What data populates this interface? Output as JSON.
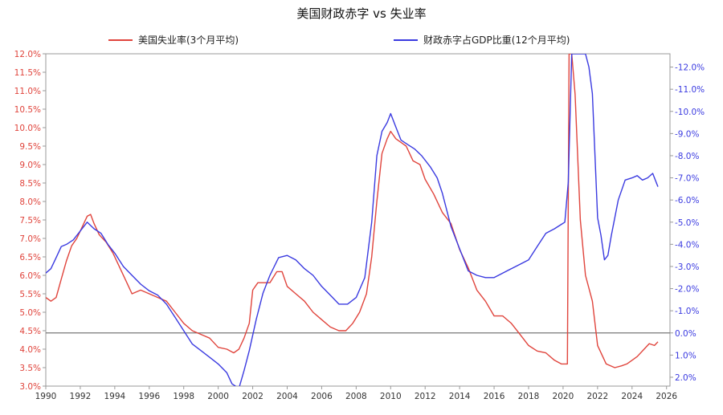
{
  "chart_data": {
    "type": "line",
    "title": "美国财政赤字 vs 失业率",
    "legend_position": "top",
    "grid": false,
    "x_ticks": [
      "1990",
      "1992",
      "1994",
      "1996",
      "1998",
      "2000",
      "2002",
      "2004",
      "2006",
      "2008",
      "2010",
      "2012",
      "2014",
      "2016",
      "2018",
      "2020",
      "2022",
      "2024",
      "2026"
    ],
    "xlim": [
      1990,
      2026.2
    ],
    "left_axis": {
      "ylim": [
        3.0,
        12.0
      ],
      "ticks": [
        "3.0%",
        "3.5%",
        "4.0%",
        "4.5%",
        "5.0%",
        "5.5%",
        "6.0%",
        "6.5%",
        "7.0%",
        "7.5%",
        "8.0%",
        "8.5%",
        "9.0%",
        "9.5%",
        "10.0%",
        "10.5%",
        "11.0%",
        "11.5%",
        "12.0%"
      ],
      "color": "#e0443c"
    },
    "right_axis": {
      "inverted": true,
      "ylim": [
        2.4,
        -12.6
      ],
      "ticks": [
        "2.0%",
        "1.0%",
        "0.0%",
        "-1.0%",
        "-2.0%",
        "-3.0%",
        "-4.0%",
        "-5.0%",
        "-6.0%",
        "-7.0%",
        "-8.0%",
        "-9.0%",
        "-10.0%",
        "-11.0%",
        "-12.0%"
      ],
      "color": "#3a3ae0"
    },
    "reference_line": {
      "axis": "right",
      "value": 0.0,
      "color": "#777777"
    },
    "series": [
      {
        "name": "美国失业率(3个月平均)",
        "axis": "left",
        "color": "#e0443c",
        "x": [
          1990.0,
          1990.3,
          1990.6,
          1990.9,
          1991.2,
          1991.5,
          1991.8,
          1992.1,
          1992.4,
          1992.6,
          1992.8,
          1993.1,
          1993.5,
          1993.9,
          1994.3,
          1994.7,
          1995.0,
          1995.5,
          1996.0,
          1996.5,
          1997.0,
          1997.5,
          1998.0,
          1998.5,
          1999.0,
          1999.5,
          2000.0,
          2000.5,
          2000.9,
          2001.2,
          2001.5,
          2001.8,
          2002.0,
          2002.3,
          2002.6,
          2003.0,
          2003.4,
          2003.7,
          2004.0,
          2004.5,
          2005.0,
          2005.5,
          2006.0,
          2006.5,
          2007.0,
          2007.4,
          2007.8,
          2008.2,
          2008.6,
          2008.9,
          2009.2,
          2009.5,
          2009.8,
          2010.0,
          2010.3,
          2010.6,
          2010.9,
          2011.3,
          2011.7,
          2012.0,
          2012.5,
          2013.0,
          2013.5,
          2014.0,
          2014.5,
          2015.0,
          2015.5,
          2016.0,
          2016.5,
          2017.0,
          2017.5,
          2018.0,
          2018.5,
          2019.0,
          2019.5,
          2019.9,
          2020.1,
          2020.25,
          2020.35,
          2020.5,
          2020.7,
          2021.0,
          2021.3,
          2021.7,
          2022.0,
          2022.5,
          2023.0,
          2023.4,
          2023.7,
          2024.0,
          2024.3,
          2024.7,
          2025.0,
          2025.3,
          2025.5
        ],
        "values": [
          5.4,
          5.3,
          5.4,
          5.9,
          6.4,
          6.8,
          7.0,
          7.3,
          7.6,
          7.65,
          7.4,
          7.1,
          6.9,
          6.6,
          6.2,
          5.8,
          5.5,
          5.6,
          5.5,
          5.4,
          5.3,
          5.0,
          4.7,
          4.5,
          4.4,
          4.3,
          4.05,
          4.0,
          3.9,
          4.0,
          4.3,
          4.7,
          5.6,
          5.8,
          5.8,
          5.8,
          6.1,
          6.1,
          5.7,
          5.5,
          5.3,
          5.0,
          4.8,
          4.6,
          4.5,
          4.5,
          4.7,
          5.0,
          5.5,
          6.5,
          8.0,
          9.3,
          9.7,
          9.9,
          9.7,
          9.6,
          9.5,
          9.1,
          9.0,
          8.6,
          8.2,
          7.7,
          7.4,
          6.7,
          6.2,
          5.6,
          5.3,
          4.9,
          4.9,
          4.7,
          4.4,
          4.1,
          3.95,
          3.9,
          3.7,
          3.6,
          3.6,
          3.6,
          12.0,
          12.0,
          10.9,
          7.5,
          6.0,
          5.3,
          4.1,
          3.6,
          3.5,
          3.55,
          3.6,
          3.7,
          3.8,
          4.0,
          4.15,
          4.1,
          4.2
        ]
      },
      {
        "name": "财政赤字占GDP比重(12个月平均)",
        "axis": "right",
        "color": "#3a3ae0",
        "x": [
          1990.0,
          1990.3,
          1990.6,
          1990.9,
          1991.2,
          1991.6,
          1992.0,
          1992.4,
          1992.8,
          1993.2,
          1993.6,
          1994.0,
          1994.5,
          1995.0,
          1995.5,
          1996.0,
          1996.5,
          1997.0,
          1997.5,
          1998.0,
          1998.5,
          1999.0,
          1999.5,
          2000.0,
          2000.5,
          2000.8,
          2001.2,
          2001.5,
          2001.8,
          2002.2,
          2002.6,
          2003.0,
          2003.5,
          2004.0,
          2004.5,
          2005.0,
          2005.5,
          2006.0,
          2006.5,
          2007.0,
          2007.5,
          2008.0,
          2008.5,
          2008.9,
          2009.2,
          2009.5,
          2009.8,
          2010.0,
          2010.3,
          2010.6,
          2011.0,
          2011.4,
          2011.8,
          2012.3,
          2012.7,
          2013.0,
          2013.5,
          2014.0,
          2014.5,
          2015.0,
          2015.5,
          2016.0,
          2016.5,
          2017.0,
          2017.5,
          2018.0,
          2018.5,
          2019.0,
          2019.5,
          2019.9,
          2020.1,
          2020.3,
          2020.5,
          2020.75,
          2021.0,
          2021.3,
          2021.5,
          2021.7,
          2022.0,
          2022.2,
          2022.4,
          2022.6,
          2022.8,
          2023.2,
          2023.6,
          2024.0,
          2024.3,
          2024.6,
          2024.9,
          2025.2,
          2025.5
        ],
        "values": [
          -2.7,
          -2.9,
          -3.4,
          -3.9,
          -4.0,
          -4.2,
          -4.6,
          -5.0,
          -4.7,
          -4.5,
          -4.0,
          -3.6,
          -3.0,
          -2.6,
          -2.2,
          -1.9,
          -1.7,
          -1.3,
          -0.7,
          -0.1,
          0.5,
          0.8,
          1.1,
          1.4,
          1.8,
          2.3,
          2.5,
          1.7,
          0.8,
          -0.6,
          -1.8,
          -2.6,
          -3.4,
          -3.5,
          -3.3,
          -2.9,
          -2.6,
          -2.1,
          -1.7,
          -1.3,
          -1.3,
          -1.6,
          -2.5,
          -5.0,
          -8.0,
          -9.1,
          -9.5,
          -9.9,
          -9.3,
          -8.7,
          -8.5,
          -8.3,
          -8.0,
          -7.5,
          -7.0,
          -6.3,
          -4.8,
          -3.8,
          -2.8,
          -2.6,
          -2.5,
          -2.5,
          -2.7,
          -2.9,
          -3.1,
          -3.3,
          -3.9,
          -4.5,
          -4.7,
          -4.9,
          -5.0,
          -6.8,
          -12.6,
          -12.6,
          -12.6,
          -12.6,
          -12.0,
          -10.8,
          -5.2,
          -4.4,
          -3.3,
          -3.5,
          -4.4,
          -6.0,
          -6.9,
          -7.0,
          -7.1,
          -6.9,
          -7.0,
          -7.2,
          -6.6
        ]
      }
    ]
  }
}
